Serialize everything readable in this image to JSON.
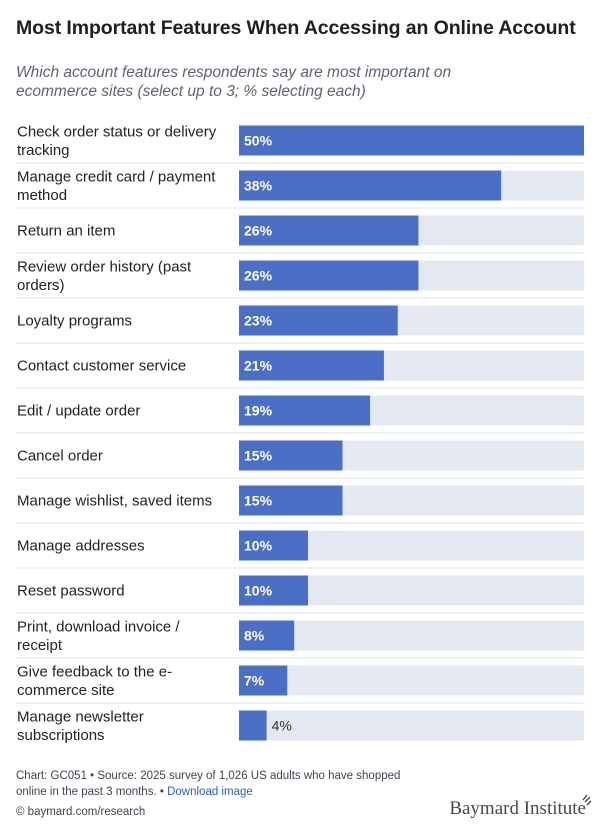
{
  "header": {
    "title": "Most Important Features When Accessing an Online Account",
    "subtitle": "Which account features respondents say are most important on ecommerce sites (select up to 3; % selecting each)"
  },
  "chart_data": {
    "type": "bar",
    "orientation": "horizontal",
    "title": "Most Important Features When Accessing an Online Account",
    "subtitle": "Which account features respondents say are most important on ecommerce sites (select up to 3; % selecting each)",
    "xlim": [
      0,
      50
    ],
    "unit": "%",
    "categories": [
      [
        "Check order status or delivery",
        "tracking"
      ],
      [
        "Manage credit card / payment",
        "method"
      ],
      [
        "Return an item"
      ],
      [
        "Review order history (past",
        "orders)"
      ],
      [
        "Loyalty programs"
      ],
      [
        "Contact customer service"
      ],
      [
        "Edit / update order"
      ],
      [
        "Cancel order"
      ],
      [
        "Manage wishlist, saved items"
      ],
      [
        "Manage addresses"
      ],
      [
        "Reset password"
      ],
      [
        "Print, download invoice /",
        "receipt"
      ],
      [
        "Give feedback to the e-",
        "commerce site"
      ],
      [
        "Manage newsletter",
        "subscriptions"
      ]
    ],
    "values": [
      50,
      38,
      26,
      26,
      23,
      21,
      19,
      15,
      15,
      10,
      10,
      8,
      7,
      4
    ],
    "labels": [
      "50%",
      "38%",
      "26%",
      "26%",
      "23%",
      "21%",
      "19%",
      "15%",
      "15%",
      "10%",
      "10%",
      "8%",
      "7%",
      "4%"
    ],
    "colors": {
      "bar": "#4a6fc4",
      "track": "#e4e8f0",
      "divider": "#dfe3ea",
      "label_inside": "#ffffff",
      "label_outside": "#333333"
    }
  },
  "footer": {
    "source": "Chart: GC051 • Source: 2025 survey of 1,026 US adults who have shopped online in the past 3 months.",
    "sep": "•",
    "download": "Download image",
    "url": "© baymard.com/research",
    "logo": "Baymard Institute"
  }
}
